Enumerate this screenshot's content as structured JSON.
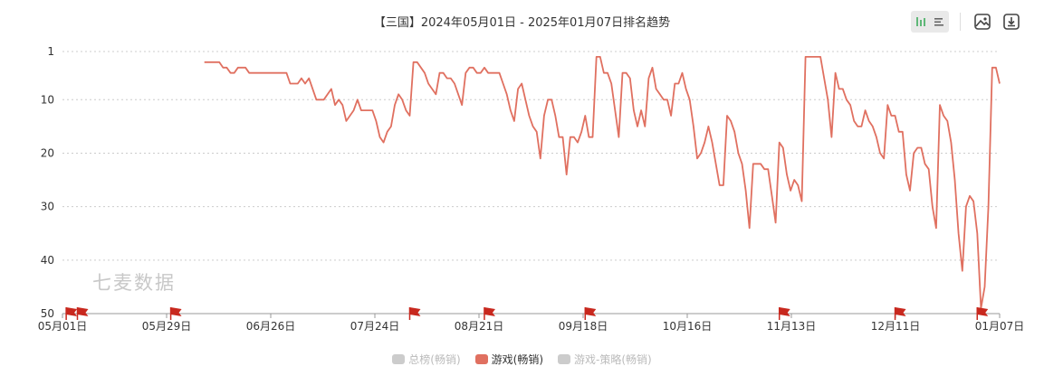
{
  "title": "【三国】2024年05月01日 - 2025年01月07日排名趋势",
  "watermark": "七麦数据",
  "toolbar": {
    "icons": [
      "bar-chart-icon",
      "list-icon",
      "image-download-icon",
      "download-icon"
    ],
    "active_color": "#5fb878"
  },
  "legend": [
    {
      "name": "总榜(畅销)",
      "active": false,
      "color": "#cccccc"
    },
    {
      "name": "游戏(畅销)",
      "active": true,
      "color": "#e07060"
    },
    {
      "name": "游戏-策略(畅销)",
      "active": false,
      "color": "#cccccc"
    }
  ],
  "chart_data": {
    "type": "line",
    "title": "【三国】2024年05月01日 - 2025年01月07日排名趋势",
    "xlabel": "",
    "ylabel": "",
    "x_range": [
      "2024-05-01",
      "2025-01-07"
    ],
    "xticks": [
      "05月01日",
      "05月29日",
      "06月26日",
      "07月24日",
      "08月21日",
      "09月18日",
      "10月16日",
      "11月13日",
      "12月11日",
      "01月07日"
    ],
    "yticks": [
      1,
      10,
      20,
      30,
      40,
      50
    ],
    "ylim": [
      1,
      50
    ],
    "y_inverted": true,
    "grid": true,
    "line_color": "#e07060",
    "flag_color": "#c8281e",
    "event_flags": [
      "2024-05-02",
      "2024-05-05",
      "2024-05-30",
      "2024-08-02",
      "2024-08-22",
      "2024-09-18",
      "2024-11-09",
      "2024-12-10",
      "2025-01-01"
    ],
    "series": [
      {
        "name": "游戏(畅销)",
        "points": [
          [
            "2024-06-08",
            3
          ],
          [
            "2024-06-12",
            3
          ],
          [
            "2024-06-13",
            4
          ],
          [
            "2024-06-14",
            4
          ],
          [
            "2024-06-15",
            5
          ],
          [
            "2024-06-16",
            5
          ],
          [
            "2024-06-17",
            4
          ],
          [
            "2024-06-19",
            4
          ],
          [
            "2024-06-20",
            5
          ],
          [
            "2024-06-22",
            5
          ],
          [
            "2024-06-30",
            5
          ],
          [
            "2024-07-01",
            7
          ],
          [
            "2024-07-03",
            7
          ],
          [
            "2024-07-04",
            6
          ],
          [
            "2024-07-05",
            7
          ],
          [
            "2024-07-06",
            6
          ],
          [
            "2024-07-08",
            10
          ],
          [
            "2024-07-10",
            10
          ],
          [
            "2024-07-12",
            8
          ],
          [
            "2024-07-13",
            11
          ],
          [
            "2024-07-14",
            10
          ],
          [
            "2024-07-15",
            11
          ],
          [
            "2024-07-16",
            14
          ],
          [
            "2024-07-17",
            13
          ],
          [
            "2024-07-18",
            12
          ],
          [
            "2024-07-19",
            10
          ],
          [
            "2024-07-20",
            12
          ],
          [
            "2024-07-23",
            12
          ],
          [
            "2024-07-24",
            14
          ],
          [
            "2024-07-25",
            17
          ],
          [
            "2024-07-26",
            18
          ],
          [
            "2024-07-27",
            16
          ],
          [
            "2024-07-28",
            15
          ],
          [
            "2024-07-29",
            11
          ],
          [
            "2024-07-30",
            9
          ],
          [
            "2024-07-31",
            10
          ],
          [
            "2024-08-01",
            12
          ],
          [
            "2024-08-02",
            13
          ],
          [
            "2024-08-03",
            3
          ],
          [
            "2024-08-04",
            3
          ],
          [
            "2024-08-05",
            4
          ],
          [
            "2024-08-06",
            5
          ],
          [
            "2024-08-07",
            7
          ],
          [
            "2024-08-08",
            8
          ],
          [
            "2024-08-09",
            9
          ],
          [
            "2024-08-10",
            5
          ],
          [
            "2024-08-11",
            5
          ],
          [
            "2024-08-12",
            6
          ],
          [
            "2024-08-13",
            6
          ],
          [
            "2024-08-14",
            7
          ],
          [
            "2024-08-15",
            9
          ],
          [
            "2024-08-16",
            11
          ],
          [
            "2024-08-17",
            5
          ],
          [
            "2024-08-18",
            4
          ],
          [
            "2024-08-19",
            4
          ],
          [
            "2024-08-20",
            5
          ],
          [
            "2024-08-21",
            5
          ],
          [
            "2024-08-22",
            4
          ],
          [
            "2024-08-23",
            5
          ],
          [
            "2024-08-24",
            5
          ],
          [
            "2024-08-26",
            5
          ],
          [
            "2024-08-27",
            7
          ],
          [
            "2024-08-28",
            9
          ],
          [
            "2024-08-29",
            12
          ],
          [
            "2024-08-30",
            14
          ],
          [
            "2024-08-31",
            8
          ],
          [
            "2024-09-01",
            7
          ],
          [
            "2024-09-02",
            10
          ],
          [
            "2024-09-03",
            13
          ],
          [
            "2024-09-04",
            15
          ],
          [
            "2024-09-05",
            16
          ],
          [
            "2024-09-06",
            21
          ],
          [
            "2024-09-07",
            13
          ],
          [
            "2024-09-08",
            10
          ],
          [
            "2024-09-09",
            10
          ],
          [
            "2024-09-10",
            13
          ],
          [
            "2024-09-11",
            17
          ],
          [
            "2024-09-12",
            17
          ],
          [
            "2024-09-13",
            24
          ],
          [
            "2024-09-14",
            17
          ],
          [
            "2024-09-15",
            17
          ],
          [
            "2024-09-16",
            18
          ],
          [
            "2024-09-17",
            16
          ],
          [
            "2024-09-18",
            13
          ],
          [
            "2024-09-19",
            17
          ],
          [
            "2024-09-20",
            17
          ],
          [
            "2024-09-21",
            2
          ],
          [
            "2024-09-22",
            2
          ],
          [
            "2024-09-23",
            5
          ],
          [
            "2024-09-24",
            5
          ],
          [
            "2024-09-25",
            7
          ],
          [
            "2024-09-26",
            12
          ],
          [
            "2024-09-27",
            17
          ],
          [
            "2024-09-28",
            5
          ],
          [
            "2024-09-29",
            5
          ],
          [
            "2024-09-30",
            6
          ],
          [
            "2024-10-01",
            12
          ],
          [
            "2024-10-02",
            15
          ],
          [
            "2024-10-03",
            12
          ],
          [
            "2024-10-04",
            15
          ],
          [
            "2024-10-05",
            6
          ],
          [
            "2024-10-06",
            4
          ],
          [
            "2024-10-07",
            8
          ],
          [
            "2024-10-08",
            9
          ],
          [
            "2024-10-09",
            10
          ],
          [
            "2024-10-10",
            10
          ],
          [
            "2024-10-11",
            13
          ],
          [
            "2024-10-12",
            7
          ],
          [
            "2024-10-13",
            7
          ],
          [
            "2024-10-14",
            5
          ],
          [
            "2024-10-15",
            8
          ],
          [
            "2024-10-16",
            10
          ],
          [
            "2024-10-17",
            15
          ],
          [
            "2024-10-18",
            21
          ],
          [
            "2024-10-19",
            20
          ],
          [
            "2024-10-20",
            18
          ],
          [
            "2024-10-21",
            15
          ],
          [
            "2024-10-22",
            18
          ],
          [
            "2024-10-23",
            22
          ],
          [
            "2024-10-24",
            26
          ],
          [
            "2024-10-25",
            26
          ],
          [
            "2024-10-26",
            13
          ],
          [
            "2024-10-27",
            14
          ],
          [
            "2024-10-28",
            16
          ],
          [
            "2024-10-29",
            20
          ],
          [
            "2024-10-30",
            22
          ],
          [
            "2024-10-31",
            27
          ],
          [
            "2024-11-01",
            34
          ],
          [
            "2024-11-02",
            22
          ],
          [
            "2024-11-03",
            22
          ],
          [
            "2024-11-04",
            22
          ],
          [
            "2024-11-05",
            23
          ],
          [
            "2024-11-06",
            23
          ],
          [
            "2024-11-07",
            28
          ],
          [
            "2024-11-08",
            33
          ],
          [
            "2024-11-09",
            18
          ],
          [
            "2024-11-10",
            19
          ],
          [
            "2024-11-11",
            24
          ],
          [
            "2024-11-12",
            27
          ],
          [
            "2024-11-13",
            25
          ],
          [
            "2024-11-14",
            26
          ],
          [
            "2024-11-15",
            29
          ],
          [
            "2024-11-16",
            2
          ],
          [
            "2024-11-17",
            2
          ],
          [
            "2024-11-19",
            2
          ],
          [
            "2024-11-20",
            2
          ],
          [
            "2024-11-21",
            6
          ],
          [
            "2024-11-22",
            10
          ],
          [
            "2024-11-23",
            17
          ],
          [
            "2024-11-24",
            5
          ],
          [
            "2024-11-25",
            8
          ],
          [
            "2024-11-26",
            8
          ],
          [
            "2024-11-27",
            10
          ],
          [
            "2024-11-28",
            11
          ],
          [
            "2024-11-29",
            14
          ],
          [
            "2024-11-30",
            15
          ],
          [
            "2024-12-01",
            15
          ],
          [
            "2024-12-02",
            12
          ],
          [
            "2024-12-03",
            14
          ],
          [
            "2024-12-04",
            15
          ],
          [
            "2024-12-05",
            17
          ],
          [
            "2024-12-06",
            20
          ],
          [
            "2024-12-07",
            21
          ],
          [
            "2024-12-08",
            11
          ],
          [
            "2024-12-09",
            13
          ],
          [
            "2024-12-10",
            13
          ],
          [
            "2024-12-11",
            16
          ],
          [
            "2024-12-12",
            16
          ],
          [
            "2024-12-13",
            24
          ],
          [
            "2024-12-14",
            27
          ],
          [
            "2024-12-15",
            20
          ],
          [
            "2024-12-16",
            19
          ],
          [
            "2024-12-17",
            19
          ],
          [
            "2024-12-18",
            22
          ],
          [
            "2024-12-19",
            23
          ],
          [
            "2024-12-20",
            30
          ],
          [
            "2024-12-21",
            34
          ],
          [
            "2024-12-22",
            11
          ],
          [
            "2024-12-23",
            13
          ],
          [
            "2024-12-24",
            14
          ],
          [
            "2024-12-25",
            18
          ],
          [
            "2024-12-26",
            25
          ],
          [
            "2024-12-27",
            35
          ],
          [
            "2024-12-28",
            42
          ],
          [
            "2024-12-29",
            30
          ],
          [
            "2024-12-30",
            28
          ],
          [
            "2024-12-31",
            29
          ],
          [
            "2025-01-01",
            35
          ],
          [
            "2025-01-02",
            49
          ],
          [
            "2025-01-03",
            45
          ],
          [
            "2025-01-04",
            30
          ],
          [
            "2025-01-05",
            4
          ],
          [
            "2025-01-06",
            4
          ],
          [
            "2025-01-07",
            7
          ]
        ]
      }
    ]
  }
}
